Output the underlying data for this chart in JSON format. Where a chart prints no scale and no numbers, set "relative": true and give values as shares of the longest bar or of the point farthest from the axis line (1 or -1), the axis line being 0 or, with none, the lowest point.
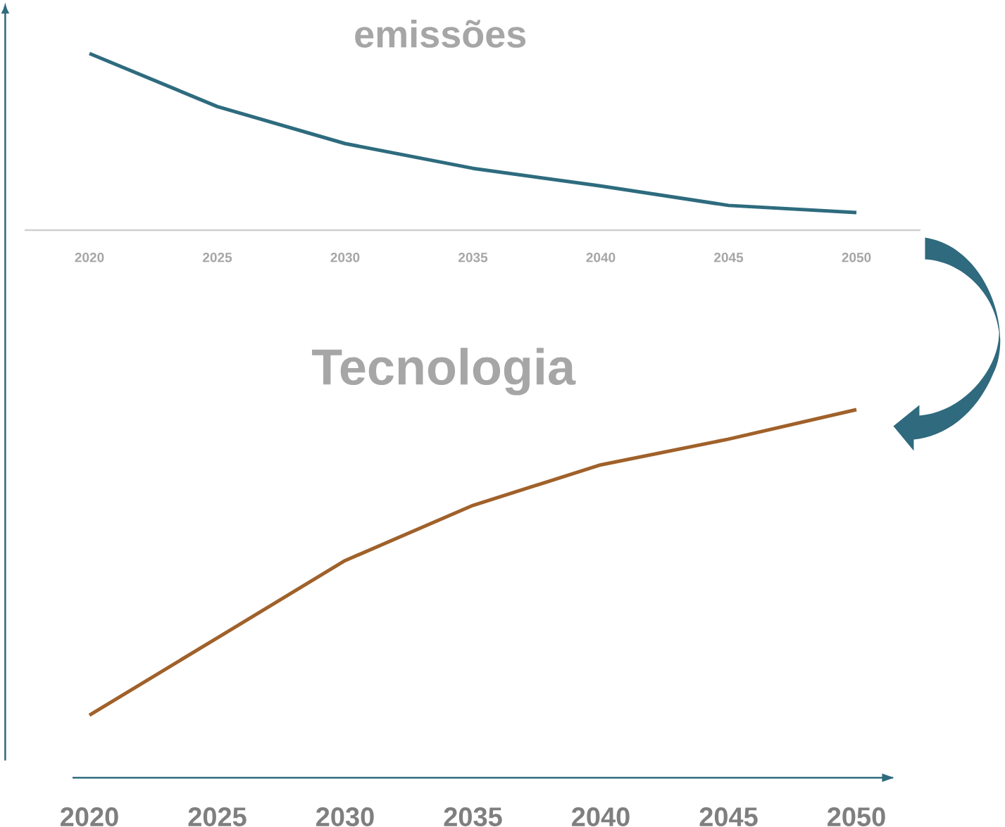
{
  "chart_data": [
    {
      "type": "line",
      "title": "emissões",
      "categories": [
        "2020",
        "2025",
        "2030",
        "2035",
        "2040",
        "2045",
        "2050"
      ],
      "relative": true,
      "series": [
        {
          "color": "#2e6b7e",
          "values": [
            1,
            0.7,
            0.49,
            0.35,
            0.25,
            0.14,
            0.1
          ]
        }
      ]
    },
    {
      "type": "line",
      "title": "Tecnologia",
      "categories": [
        "2020",
        "2025",
        "2030",
        "2035",
        "2040",
        "2045",
        "2050"
      ],
      "relative": true,
      "series": [
        {
          "color": "#a0612a",
          "values": [
            0.17,
            0.38,
            0.59,
            0.74,
            0.85,
            0.92,
            1
          ]
        }
      ]
    }
  ]
}
